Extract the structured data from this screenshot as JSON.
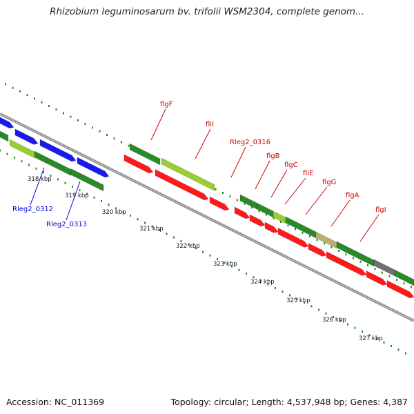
{
  "header": {
    "title": "Rhizobium leguminosarum bv. trifolii WSM2304, complete genom..."
  },
  "footer": {
    "accession": "Accession: NC_011369",
    "summary": "Topology: circular; Length: 4,537,948 bp; Genes: 4,387"
  },
  "colors": {
    "cds_forward": "#2a8a2a",
    "cds_reverse": "#ff1a1a",
    "cds_blue": "#1a1aee",
    "light_green": "#9acd32",
    "tan": "#b8b070",
    "gray_gene": "#707070",
    "backbone": "#8c8c8c",
    "tick": "#1a8a1a",
    "label_red": "#cc0000",
    "label_blue": "#0000cc"
  },
  "scale_labels": [
    "318 kbp",
    "319 kbp",
    "320 kbp",
    "321 kbp",
    "322 kbp",
    "323 kbp",
    "324 kbp",
    "325 kbp",
    "326 kbp",
    "327 kbp"
  ],
  "gene_labels": [
    {
      "text": "flgF",
      "color": "red"
    },
    {
      "text": "fliI",
      "color": "red"
    },
    {
      "text": "Rleg2_0316",
      "color": "red"
    },
    {
      "text": "flgB",
      "color": "red"
    },
    {
      "text": "flgC",
      "color": "red"
    },
    {
      "text": "fliE",
      "color": "red"
    },
    {
      "text": "flgG",
      "color": "red"
    },
    {
      "text": "flgA",
      "color": "red"
    },
    {
      "text": "flgI",
      "color": "red"
    },
    {
      "text": "Rleg2_0312",
      "color": "blue"
    },
    {
      "text": "Rleg2_0313",
      "color": "blue"
    }
  ]
}
